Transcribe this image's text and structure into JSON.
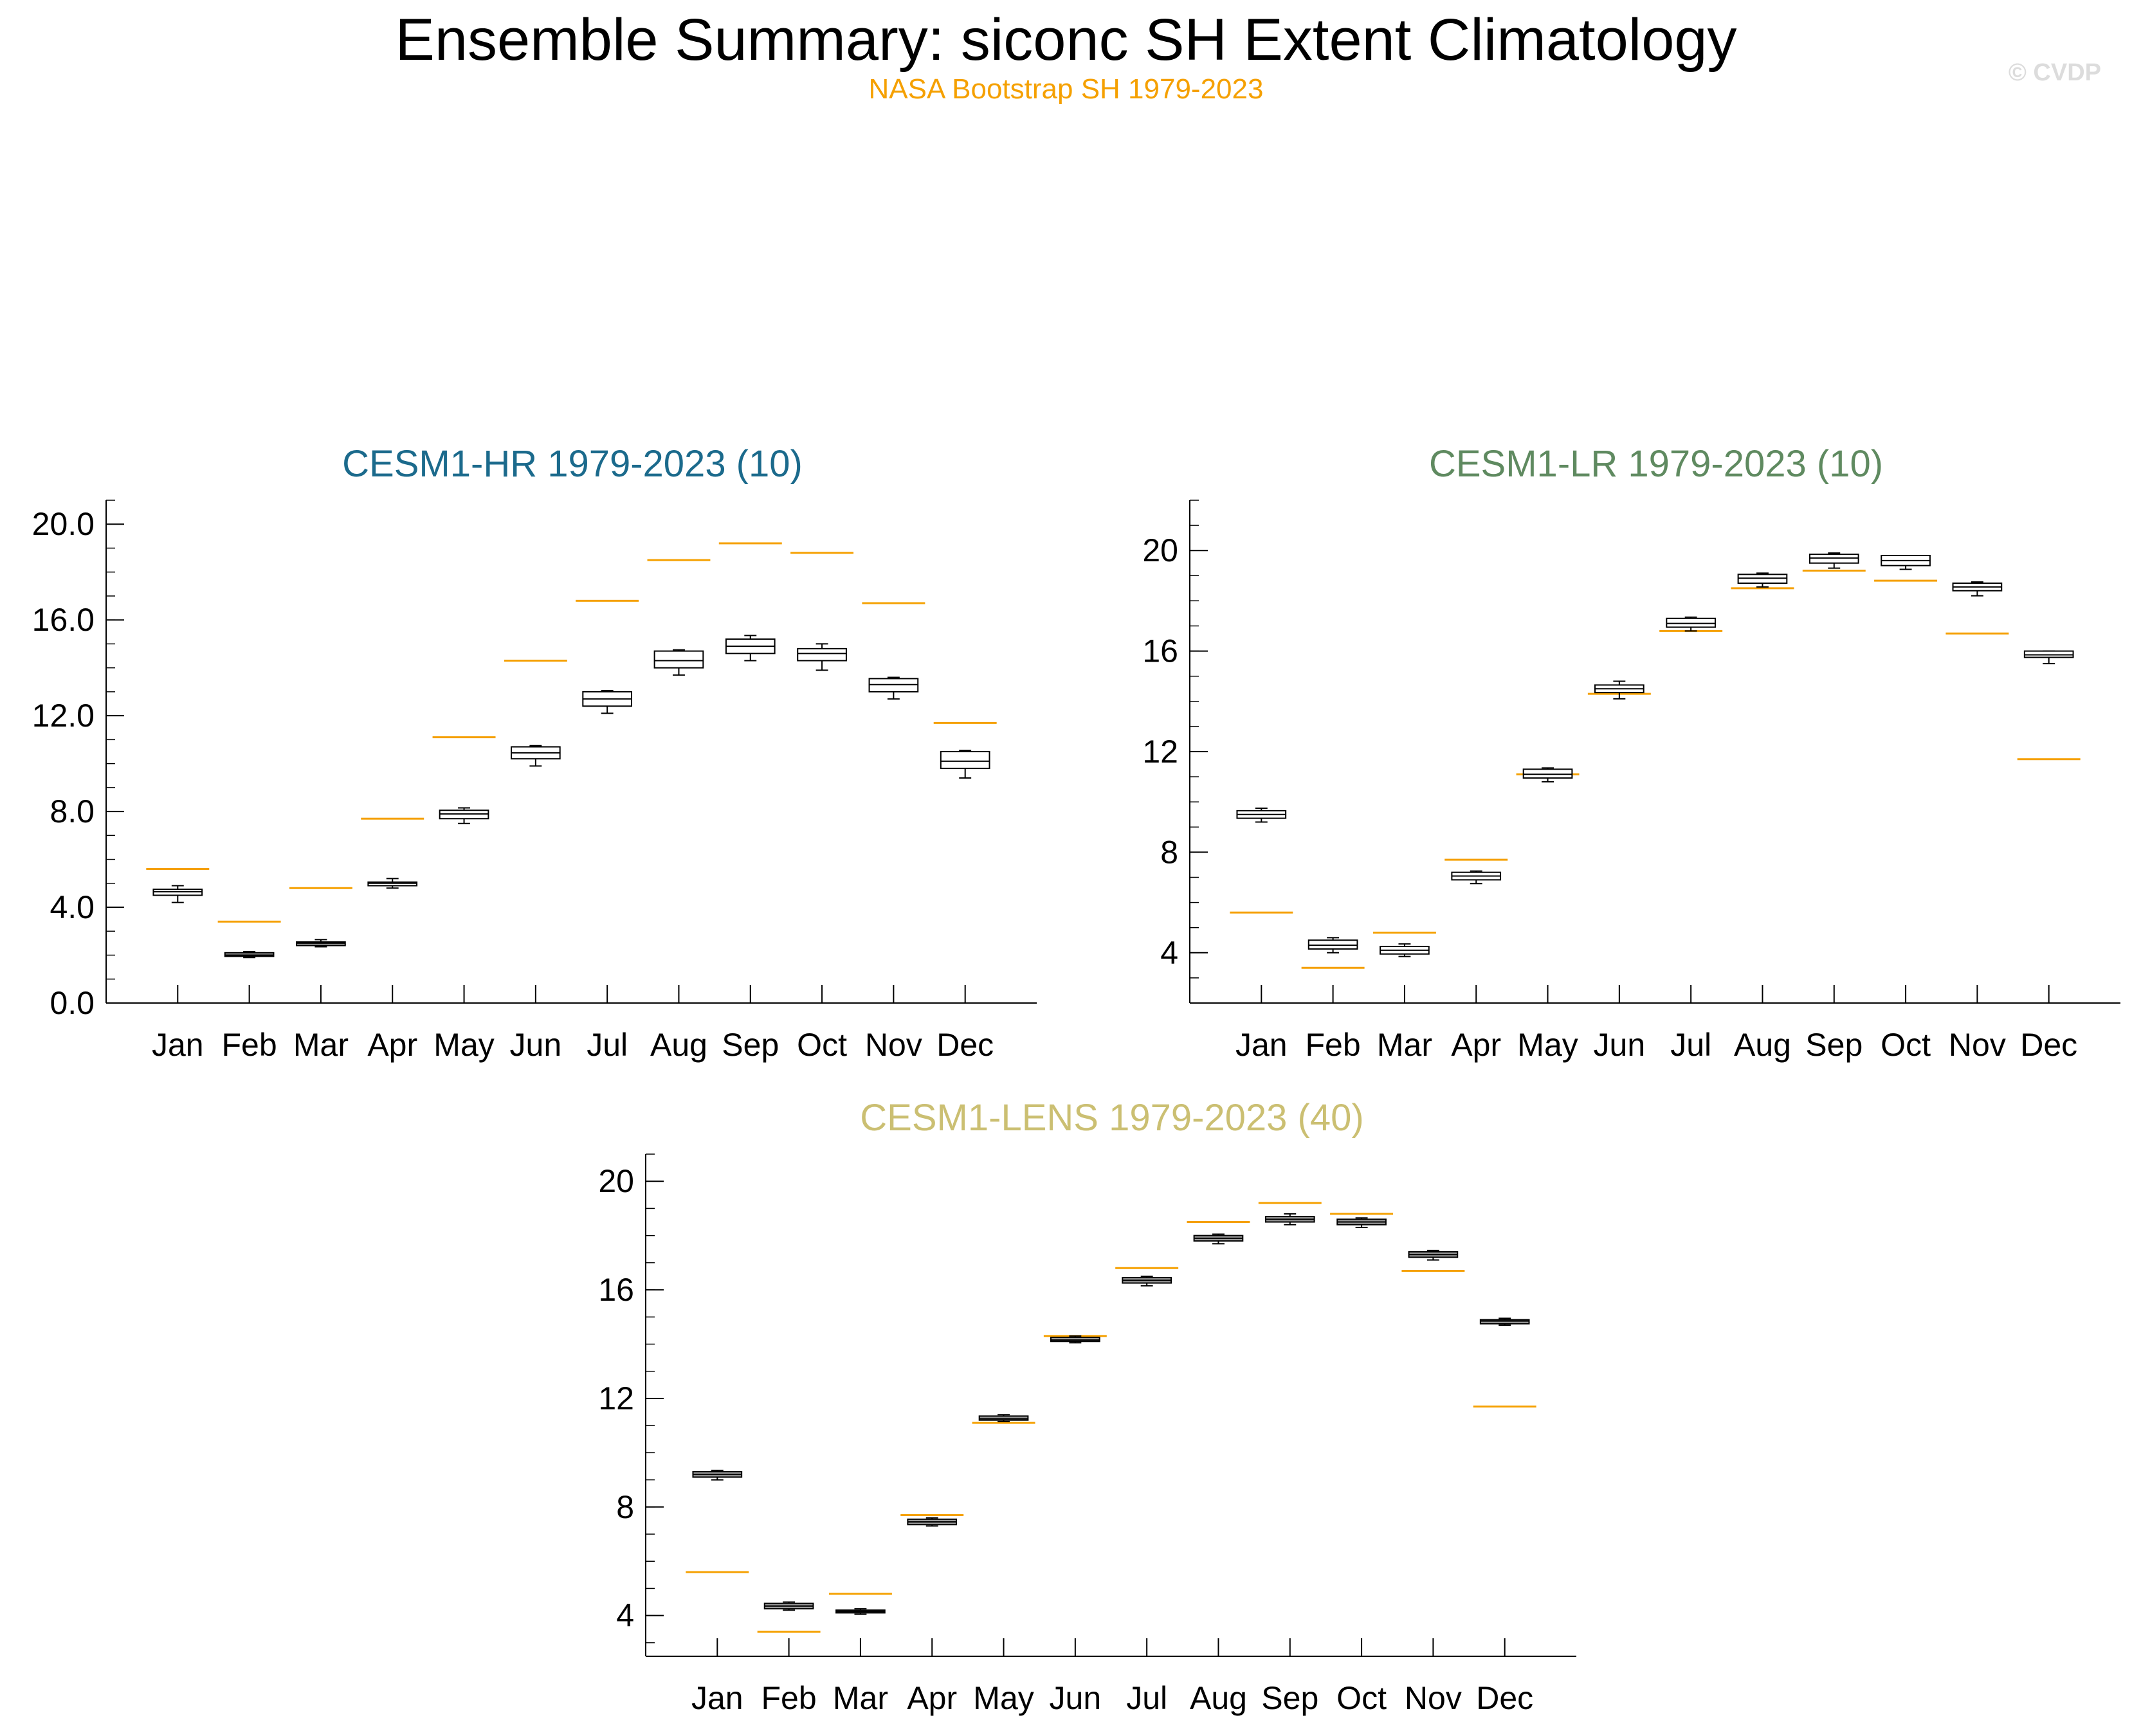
{
  "title": "Ensemble Summary: siconc SH Extent Climatology",
  "subtitle": "NASA Bootstrap SH 1979-2023",
  "watermark": "© CVDP",
  "colors": {
    "observation": "#f5a000",
    "box_outline": "#000000",
    "panel_hr_title": "#1b6a8c",
    "panel_lr_title": "#5f8a60",
    "panel_lens_title": "#cbbf72"
  },
  "chart_data": [
    {
      "type": "box",
      "title": "CESM1-HR 1979-2023 (10)",
      "categories": [
        "Jan",
        "Feb",
        "Mar",
        "Apr",
        "May",
        "Jun",
        "Jul",
        "Aug",
        "Sep",
        "Oct",
        "Nov",
        "Dec"
      ],
      "ylim": [
        0,
        21
      ],
      "yticks": [
        0,
        4,
        8,
        12,
        16,
        20
      ],
      "ytick_labels": [
        "0.0",
        "4.0",
        "8.0",
        "12.0",
        "16.0",
        "20.0"
      ],
      "observation": [
        5.6,
        3.4,
        4.8,
        7.7,
        11.1,
        14.3,
        16.8,
        18.5,
        19.2,
        18.8,
        16.7,
        11.7
      ],
      "boxes": [
        {
          "min": 4.2,
          "q1": 4.5,
          "median": 4.65,
          "q3": 4.75,
          "max": 4.9,
          "fill": false
        },
        {
          "min": 1.9,
          "q1": 1.95,
          "median": 2.0,
          "q3": 2.1,
          "max": 2.15,
          "fill": true
        },
        {
          "min": 2.35,
          "q1": 2.4,
          "median": 2.5,
          "q3": 2.55,
          "max": 2.65,
          "fill": true
        },
        {
          "min": 4.8,
          "q1": 4.9,
          "median": 5.0,
          "q3": 5.05,
          "max": 5.2,
          "fill": false
        },
        {
          "min": 7.5,
          "q1": 7.7,
          "median": 7.9,
          "q3": 8.05,
          "max": 8.15,
          "fill": false
        },
        {
          "min": 9.9,
          "q1": 10.2,
          "median": 10.45,
          "q3": 10.7,
          "max": 10.75,
          "fill": false
        },
        {
          "min": 12.1,
          "q1": 12.4,
          "median": 12.7,
          "q3": 13.0,
          "max": 13.05,
          "fill": false
        },
        {
          "min": 13.7,
          "q1": 14.0,
          "median": 14.3,
          "q3": 14.7,
          "max": 14.75,
          "fill": false
        },
        {
          "min": 14.3,
          "q1": 14.6,
          "median": 14.9,
          "q3": 15.2,
          "max": 15.35,
          "fill": false
        },
        {
          "min": 13.9,
          "q1": 14.3,
          "median": 14.6,
          "q3": 14.8,
          "max": 15.0,
          "fill": false
        },
        {
          "min": 12.7,
          "q1": 13.0,
          "median": 13.3,
          "q3": 13.55,
          "max": 13.6,
          "fill": false
        },
        {
          "min": 9.4,
          "q1": 9.8,
          "median": 10.1,
          "q3": 10.5,
          "max": 10.55,
          "fill": false
        }
      ]
    },
    {
      "type": "box",
      "title": "CESM1-LR 1979-2023 (10)",
      "categories": [
        "Jan",
        "Feb",
        "Mar",
        "Apr",
        "May",
        "Jun",
        "Jul",
        "Aug",
        "Sep",
        "Oct",
        "Nov",
        "Dec"
      ],
      "ylim": [
        2,
        22
      ],
      "yticks": [
        4,
        8,
        12,
        16,
        20
      ],
      "ytick_labels": [
        "4",
        "8",
        "12",
        "16",
        "20"
      ],
      "observation": [
        5.6,
        3.4,
        4.8,
        7.7,
        11.1,
        14.3,
        16.8,
        18.5,
        19.2,
        18.8,
        16.7,
        11.7
      ],
      "boxes": [
        {
          "min": 9.2,
          "q1": 9.35,
          "median": 9.5,
          "q3": 9.65,
          "max": 9.75,
          "fill": false
        },
        {
          "min": 4.0,
          "q1": 4.15,
          "median": 4.3,
          "q3": 4.5,
          "max": 4.6,
          "fill": false
        },
        {
          "min": 3.85,
          "q1": 3.95,
          "median": 4.1,
          "q3": 4.25,
          "max": 4.35,
          "fill": false
        },
        {
          "min": 6.75,
          "q1": 6.9,
          "median": 7.05,
          "q3": 7.2,
          "max": 7.25,
          "fill": false
        },
        {
          "min": 10.8,
          "q1": 10.95,
          "median": 11.1,
          "q3": 11.3,
          "max": 11.35,
          "fill": false
        },
        {
          "min": 14.1,
          "q1": 14.35,
          "median": 14.5,
          "q3": 14.65,
          "max": 14.8,
          "fill": false
        },
        {
          "min": 16.8,
          "q1": 16.95,
          "median": 17.1,
          "q3": 17.3,
          "max": 17.35,
          "fill": false
        },
        {
          "min": 18.55,
          "q1": 18.7,
          "median": 18.9,
          "q3": 19.05,
          "max": 19.1,
          "fill": false
        },
        {
          "min": 19.3,
          "q1": 19.5,
          "median": 19.7,
          "q3": 19.85,
          "max": 19.9,
          "fill": false
        },
        {
          "min": 19.25,
          "q1": 19.4,
          "median": 19.6,
          "q3": 19.8,
          "max": 19.8,
          "fill": false
        },
        {
          "min": 18.2,
          "q1": 18.4,
          "median": 18.55,
          "q3": 18.7,
          "max": 18.75,
          "fill": false
        },
        {
          "min": 15.5,
          "q1": 15.75,
          "median": 15.85,
          "q3": 16.0,
          "max": 16.0,
          "fill": false
        }
      ]
    },
    {
      "type": "box",
      "title": "CESM1-LENS 1979-2023 (40)",
      "categories": [
        "Jan",
        "Feb",
        "Mar",
        "Apr",
        "May",
        "Jun",
        "Jul",
        "Aug",
        "Sep",
        "Oct",
        "Nov",
        "Dec"
      ],
      "ylim": [
        2.5,
        21
      ],
      "yticks": [
        4,
        8,
        12,
        16,
        20
      ],
      "ytick_labels": [
        "4",
        "8",
        "12",
        "16",
        "20"
      ],
      "observation": [
        5.6,
        3.4,
        4.8,
        7.7,
        11.1,
        14.3,
        16.8,
        18.5,
        19.2,
        18.8,
        16.7,
        11.7
      ],
      "boxes": [
        {
          "min": 9.0,
          "q1": 9.1,
          "median": 9.2,
          "q3": 9.3,
          "max": 9.35,
          "fill": true
        },
        {
          "min": 4.2,
          "q1": 4.25,
          "median": 4.35,
          "q3": 4.45,
          "max": 4.5,
          "fill": true
        },
        {
          "min": 4.05,
          "q1": 4.1,
          "median": 4.15,
          "q3": 4.2,
          "max": 4.25,
          "fill": true
        },
        {
          "min": 7.3,
          "q1": 7.35,
          "median": 7.45,
          "q3": 7.55,
          "max": 7.6,
          "fill": true
        },
        {
          "min": 11.15,
          "q1": 11.2,
          "median": 11.25,
          "q3": 11.35,
          "max": 11.4,
          "fill": true
        },
        {
          "min": 14.05,
          "q1": 14.1,
          "median": 14.15,
          "q3": 14.25,
          "max": 14.3,
          "fill": true
        },
        {
          "min": 16.15,
          "q1": 16.25,
          "median": 16.35,
          "q3": 16.45,
          "max": 16.5,
          "fill": true
        },
        {
          "min": 17.7,
          "q1": 17.8,
          "median": 17.9,
          "q3": 18.0,
          "max": 18.05,
          "fill": true
        },
        {
          "min": 18.4,
          "q1": 18.5,
          "median": 18.6,
          "q3": 18.7,
          "max": 18.8,
          "fill": true
        },
        {
          "min": 18.3,
          "q1": 18.4,
          "median": 18.5,
          "q3": 18.6,
          "max": 18.65,
          "fill": true
        },
        {
          "min": 17.1,
          "q1": 17.2,
          "median": 17.3,
          "q3": 17.4,
          "max": 17.45,
          "fill": true
        },
        {
          "min": 14.7,
          "q1": 14.75,
          "median": 14.85,
          "q3": 14.9,
          "max": 14.95,
          "fill": true
        }
      ]
    }
  ]
}
